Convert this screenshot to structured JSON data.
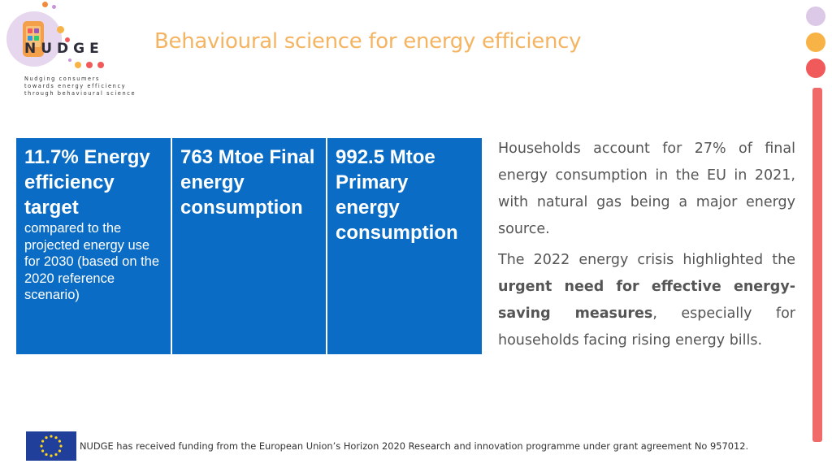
{
  "logo": {
    "brand": "NUDGE",
    "tagline": [
      "Nudging consumers",
      "towards energy efficiency",
      "through behavioural science"
    ]
  },
  "title": "Behavioural science for energy efficiency",
  "stats": [
    {
      "big": "11.7% Energy efficiency target",
      "small": "compared to the projected energy use for 2030 (based on the 2020 reference scenario)"
    },
    {
      "big": "763 Mtoe Final energy consumption",
      "small": ""
    },
    {
      "big": "992.5 Mtoe Primary energy consumption",
      "small": ""
    }
  ],
  "paragraph1": "Households account for 27% of final energy consumption in the EU in 2021, with natural gas being a major energy source.",
  "paragraph2": {
    "pre": "The 2022 energy crisis highlighted the ",
    "bold": "urgent need for effective energy-saving measures",
    "post": ", especially for households facing rising energy bills."
  },
  "footer": "NUDGE has received funding from the European Union’s Horizon 2020 Research and innovation programme under grant agreement No 957012.",
  "colors": {
    "title": "#f4b462",
    "stat_box": "#0a6cc4",
    "accent_bar": "#f06a6a",
    "deco_purple": "#dcc9e8",
    "deco_orange": "#f7b345",
    "deco_red": "#f05a5a"
  },
  "icons": [
    "nudge-logo",
    "eu-flag-icon"
  ]
}
